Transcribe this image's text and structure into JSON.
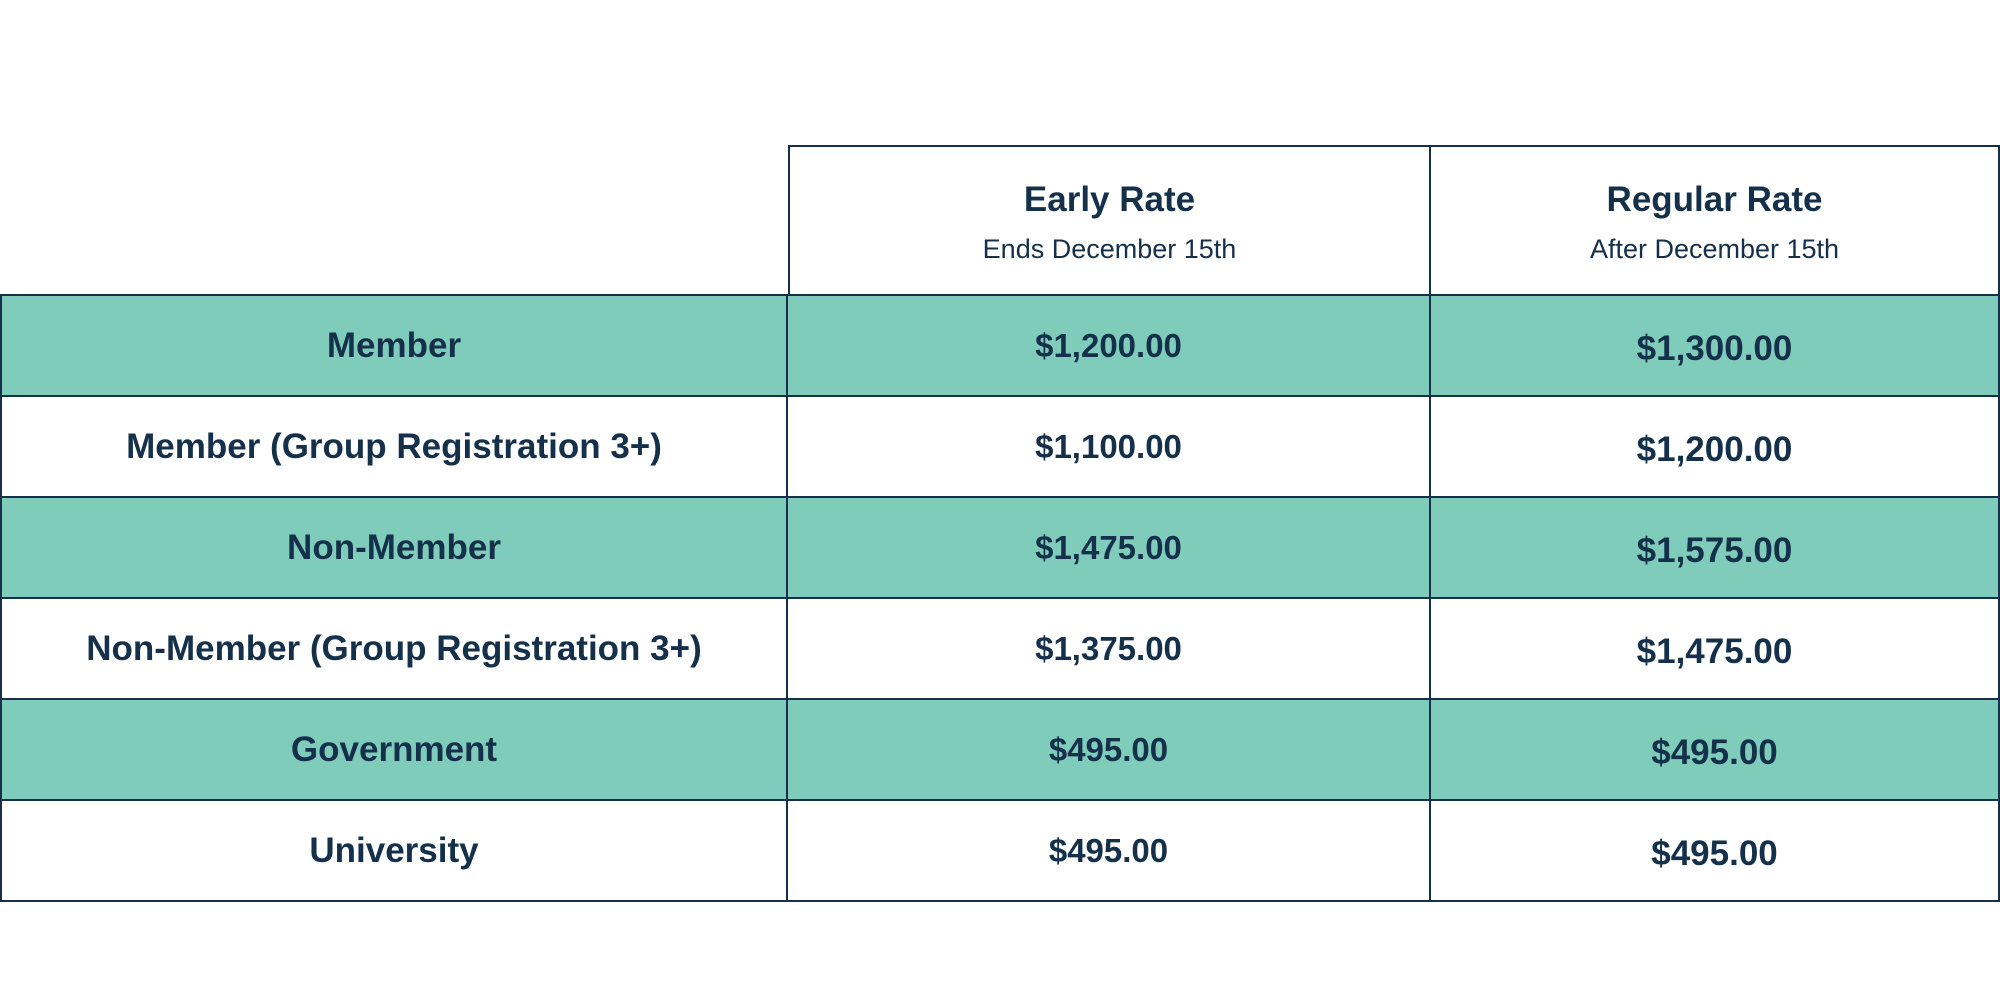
{
  "table": {
    "columns": [
      {
        "title": "Early Rate",
        "subtitle": "Ends December 15th"
      },
      {
        "title": "Regular Rate",
        "subtitle": "After December 15th"
      }
    ],
    "rows": [
      {
        "label": "Member",
        "early": "$1,200.00",
        "regular": "$1,300.00"
      },
      {
        "label": "Member (Group Registration 3+)",
        "early": "$1,100.00",
        "regular": "$1,200.00"
      },
      {
        "label": "Non-Member",
        "early": "$1,475.00",
        "regular": "$1,575.00"
      },
      {
        "label": "Non-Member (Group Registration 3+)",
        "early": "$1,375.00",
        "regular": "$1,475.00"
      },
      {
        "label": "Government",
        "early": "$495.00",
        "regular": "$495.00"
      },
      {
        "label": "University",
        "early": "$495.00",
        "regular": "$495.00"
      }
    ]
  },
  "colors": {
    "shaded_row": "#80ccbb",
    "text": "#15304a",
    "border": "#15304a"
  }
}
